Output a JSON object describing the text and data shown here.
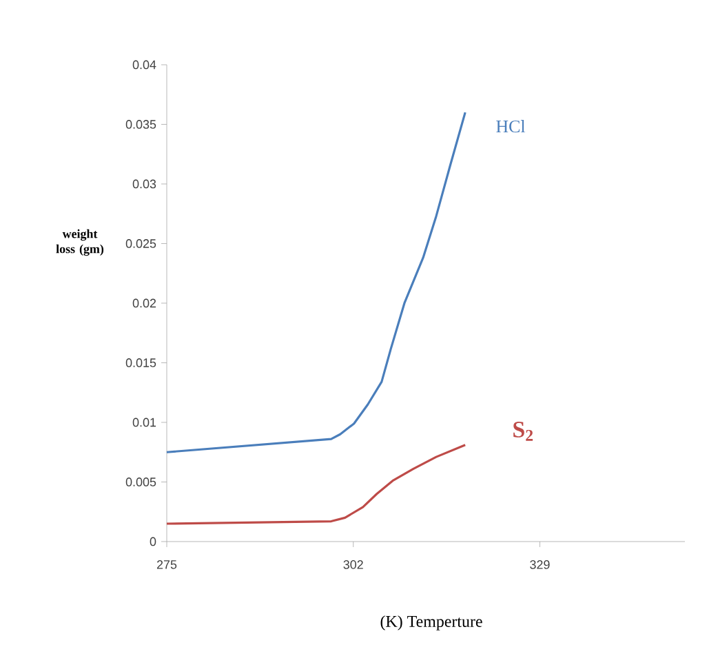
{
  "chart_data": {
    "type": "line",
    "xlabel": "(K) Temperture",
    "ylabel": "weight loss (gm)",
    "xlim": [
      275,
      350
    ],
    "xticks": [
      275,
      302,
      329
    ],
    "ylim": [
      0,
      0.04
    ],
    "yticks": [
      0,
      0.005,
      0.01,
      0.015,
      0.02,
      0.025,
      0.03,
      0.035,
      0.04
    ],
    "grid": false,
    "legend": false,
    "marker": "none",
    "line_style": "solid",
    "series": [
      {
        "name": "HCl",
        "color": "#4a7ebb",
        "x": [
          275,
          298.8,
          300.1,
          302.1,
          304.1,
          306.1,
          307.4,
          309.4,
          312.1,
          314.0,
          316.0,
          318.2
        ],
        "values": [
          0.0075,
          0.0086,
          0.009,
          0.0099,
          0.0115,
          0.0134,
          0.0161,
          0.02,
          0.0238,
          0.0273,
          0.0315,
          0.036
        ]
      },
      {
        "name": "S$_{2}$",
        "color": "#be4b48",
        "x": [
          275,
          298.8,
          300.8,
          303.4,
          305.4,
          307.7,
          310.7,
          314.0,
          318.2
        ],
        "values": [
          0.0015,
          0.0017,
          0.002,
          0.0029,
          0.004,
          0.0051,
          0.0061,
          0.0071,
          0.0081
        ]
      }
    ]
  }
}
